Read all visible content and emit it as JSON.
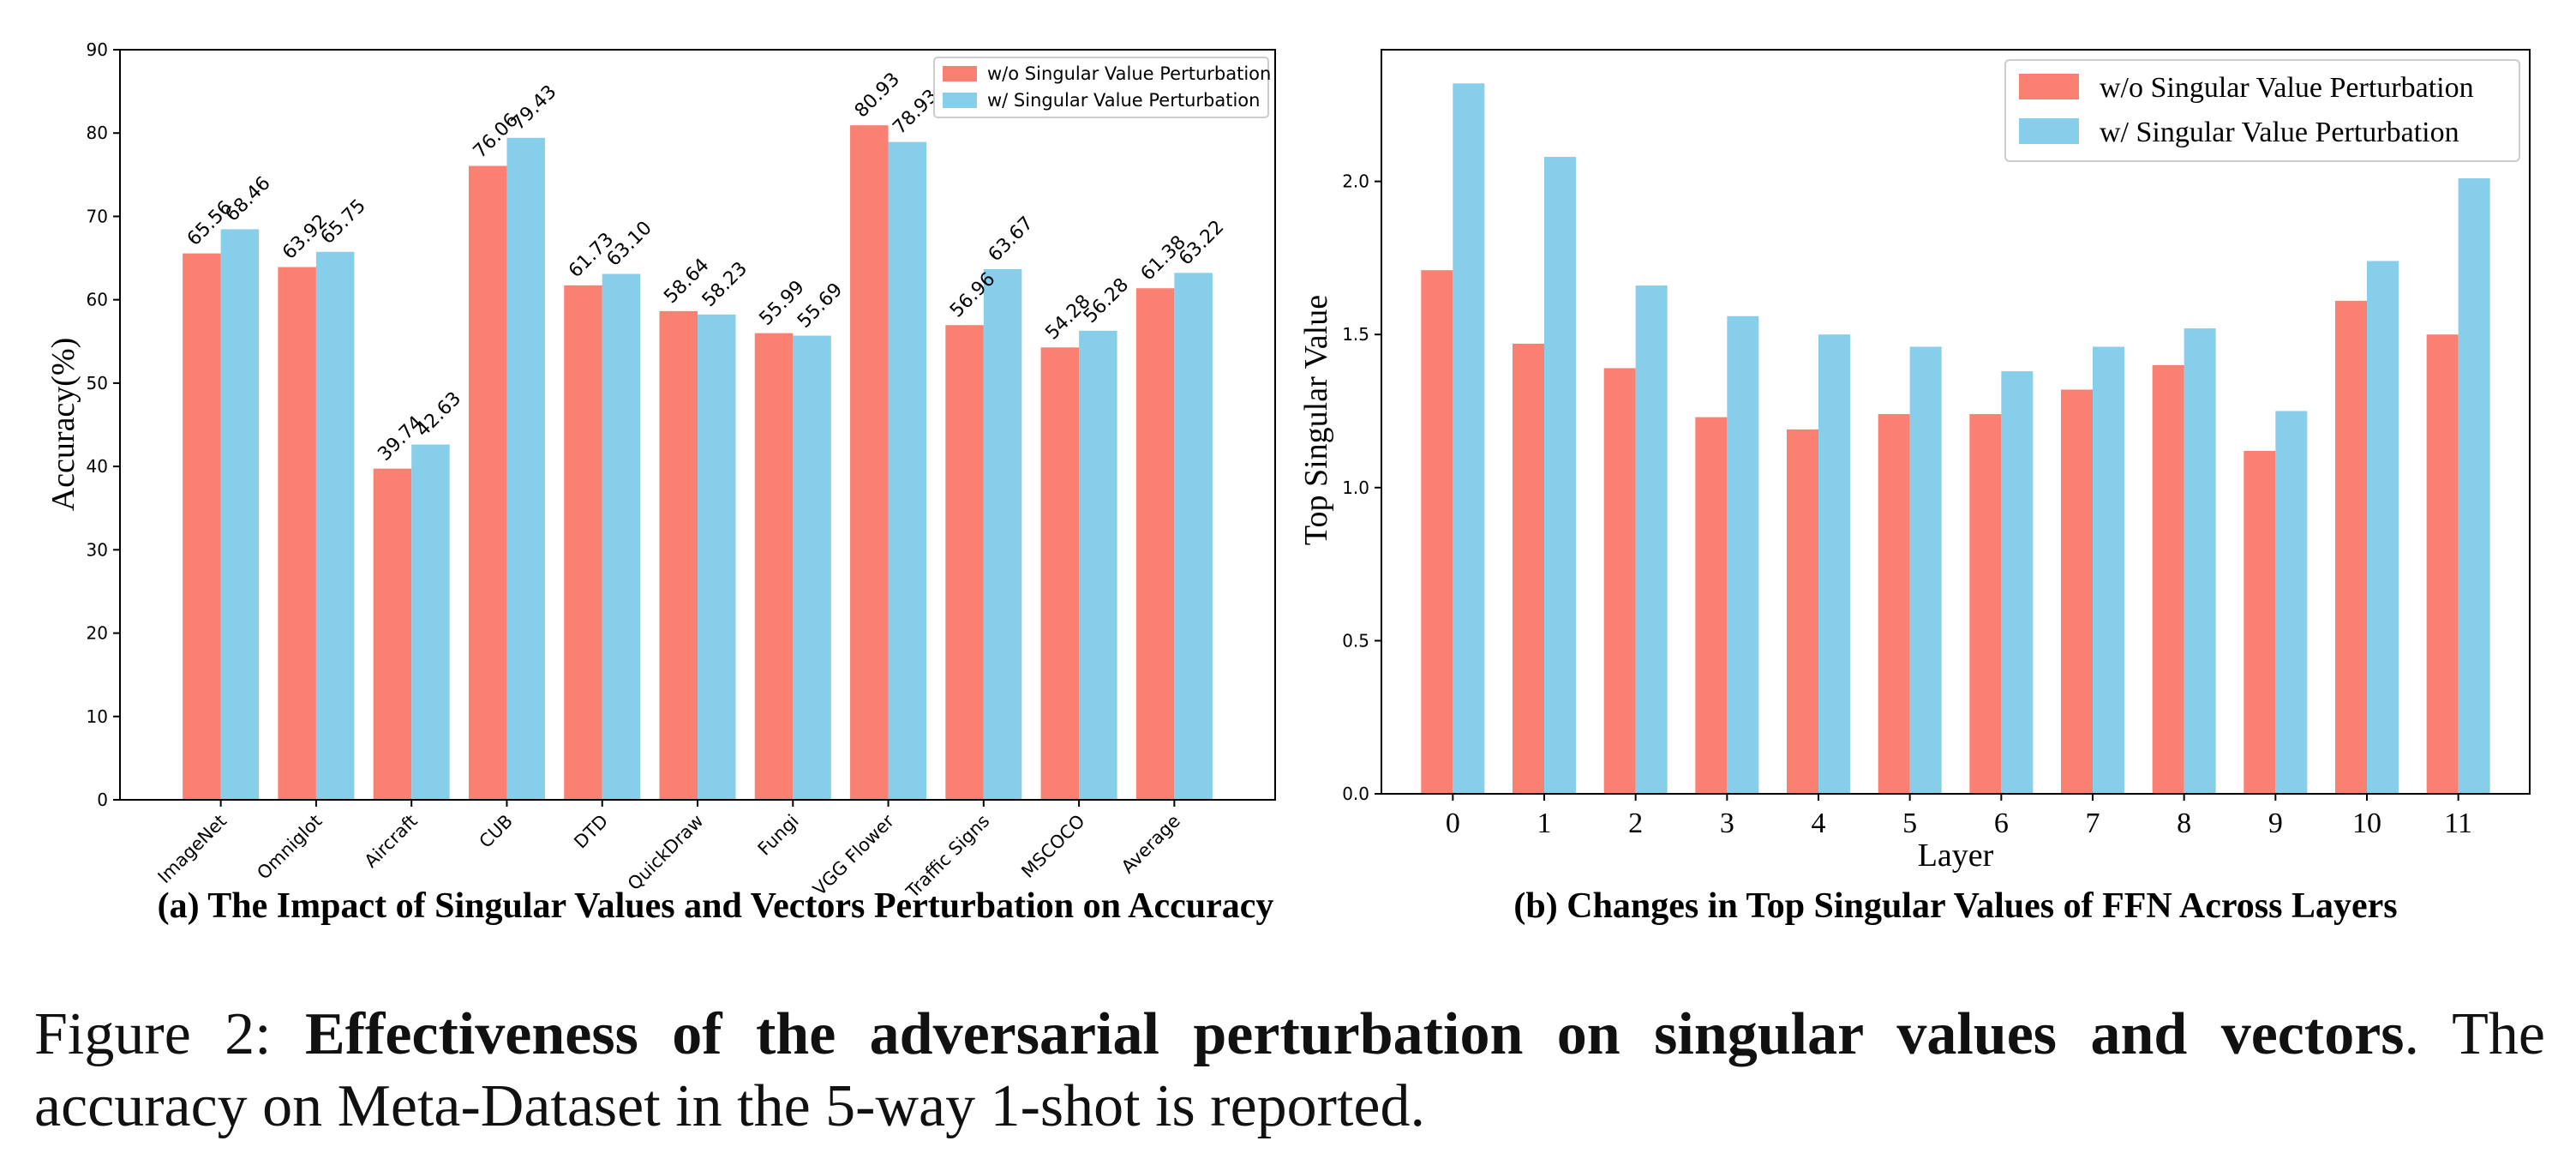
{
  "figure": {
    "caption_prefix": "Figure 2:",
    "caption_bold": "Effectiveness of the adversarial perturbation on singular values and vectors",
    "caption_rest": ". The accuracy on Meta-Dataset in the 5-way 1-shot is reported."
  },
  "colors": {
    "wo": "#FA8072",
    "w": "#87CEEB",
    "axis": "#000000"
  },
  "chart_data": [
    {
      "type": "bar",
      "title": "(a) The Impact of Singular Values and Vectors Perturbation on Accuracy",
      "xlabel": "",
      "ylabel": "Accuracy(%)",
      "ylim": [
        0,
        90
      ],
      "yticks": [
        "0",
        "10",
        "20",
        "30",
        "40",
        "50",
        "60",
        "70",
        "80",
        "90"
      ],
      "categories": [
        "ImageNet",
        "Omniglot",
        "Aircraft",
        "CUB",
        "DTD",
        "QuickDraw",
        "Fungi",
        "VGG Flower",
        "Traffic Signs",
        "MSCOCO",
        "Average"
      ],
      "series": [
        {
          "name": "w/o Singular Value Perturbation",
          "values": [
            65.56,
            63.92,
            39.74,
            76.06,
            61.73,
            58.64,
            55.99,
            80.93,
            56.96,
            54.28,
            61.38
          ],
          "labels": [
            "65.56",
            "63.92",
            "39.74",
            "76.06",
            "61.73",
            "58.64",
            "55.99",
            "80.93",
            "56.96",
            "54.28",
            "61.38"
          ]
        },
        {
          "name": "w/ Singular Value Perturbation",
          "values": [
            68.46,
            65.75,
            42.63,
            79.43,
            63.1,
            58.23,
            55.69,
            78.93,
            63.67,
            56.28,
            63.22
          ],
          "labels": [
            "68.46",
            "65.75",
            "42.63",
            "79.43",
            "63.10",
            "58.23",
            "55.69",
            "78.93",
            "63.67",
            "56.28",
            "63.22"
          ]
        }
      ],
      "legend": "top-right",
      "grid": false
    },
    {
      "type": "bar",
      "title": "(b) Changes in Top Singular Values of FFN Across Layers",
      "xlabel": "Layer",
      "ylabel": "Top Singular Value",
      "ylim": [
        0,
        2.43
      ],
      "yticks": [
        "0.0",
        "0.5",
        "1.0",
        "1.5",
        "2.0"
      ],
      "categories": [
        "0",
        "1",
        "2",
        "3",
        "4",
        "5",
        "6",
        "7",
        "8",
        "9",
        "10",
        "11"
      ],
      "series": [
        {
          "name": "w/o Singular Value Perturbation",
          "values": [
            1.71,
            1.47,
            1.39,
            1.23,
            1.19,
            1.24,
            1.24,
            1.32,
            1.4,
            1.12,
            1.61,
            1.5
          ]
        },
        {
          "name": "w/ Singular Value Perturbation",
          "values": [
            2.32,
            2.08,
            1.66,
            1.56,
            1.5,
            1.46,
            1.38,
            1.46,
            1.52,
            1.25,
            1.74,
            2.01
          ]
        }
      ],
      "legend": "top-right",
      "grid": false
    }
  ]
}
